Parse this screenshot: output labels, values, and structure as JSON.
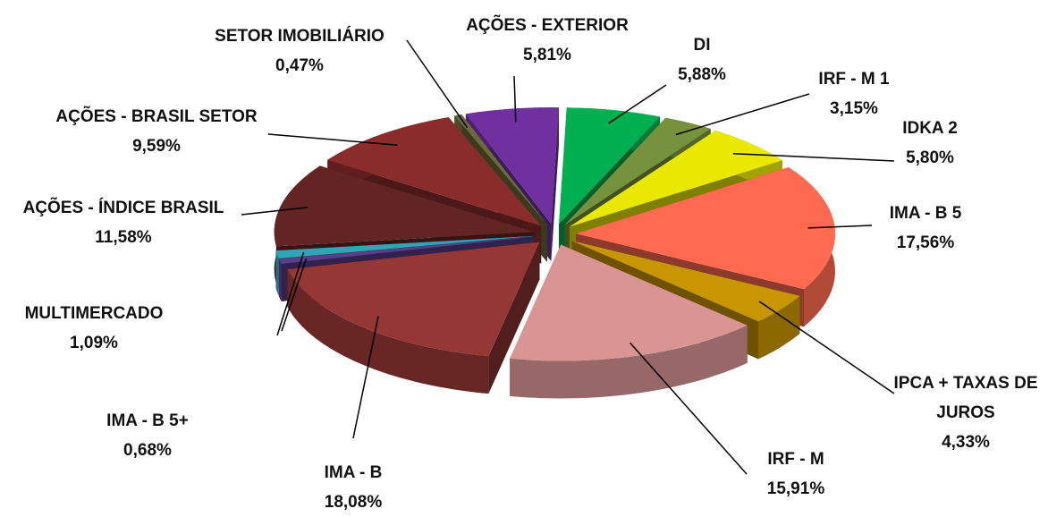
{
  "chart_data": {
    "type": "pie3d",
    "categories": [
      "DI",
      "IRF - M 1",
      "IDKA 2",
      "IMA - B 5",
      "IPCA + TAXAS DE JUROS",
      "IRF - M",
      "IMA - B",
      "IMA - B 5+",
      "MULTIMERCADO",
      "AÇÕES - ÍNDICE BRASIL",
      "AÇÕES - BRASIL SETOR",
      "SETOR IMOBILIÁRIO",
      "AÇÕES - EXTERIOR"
    ],
    "values": [
      5.88,
      3.15,
      5.8,
      17.56,
      4.33,
      15.91,
      18.08,
      0.68,
      1.09,
      11.58,
      9.59,
      0.47,
      5.81
    ],
    "value_labels": [
      "5,88%",
      "3,15%",
      "5,80%",
      "17,56%",
      "4,33%",
      "15,91%",
      "18,08%",
      "0,68%",
      "1,09%",
      "11,58%",
      "9,59%",
      "0,47%",
      "5,81%"
    ],
    "colors": [
      "#00b050",
      "#76923c",
      "#e8e800",
      "#ff6a50",
      "#c89600",
      "#d99594",
      "#953735",
      "#5a3e8c",
      "#31a5b5",
      "#632523",
      "#8b2c2c",
      "#6b6b3a",
      "#7030a0"
    ]
  }
}
